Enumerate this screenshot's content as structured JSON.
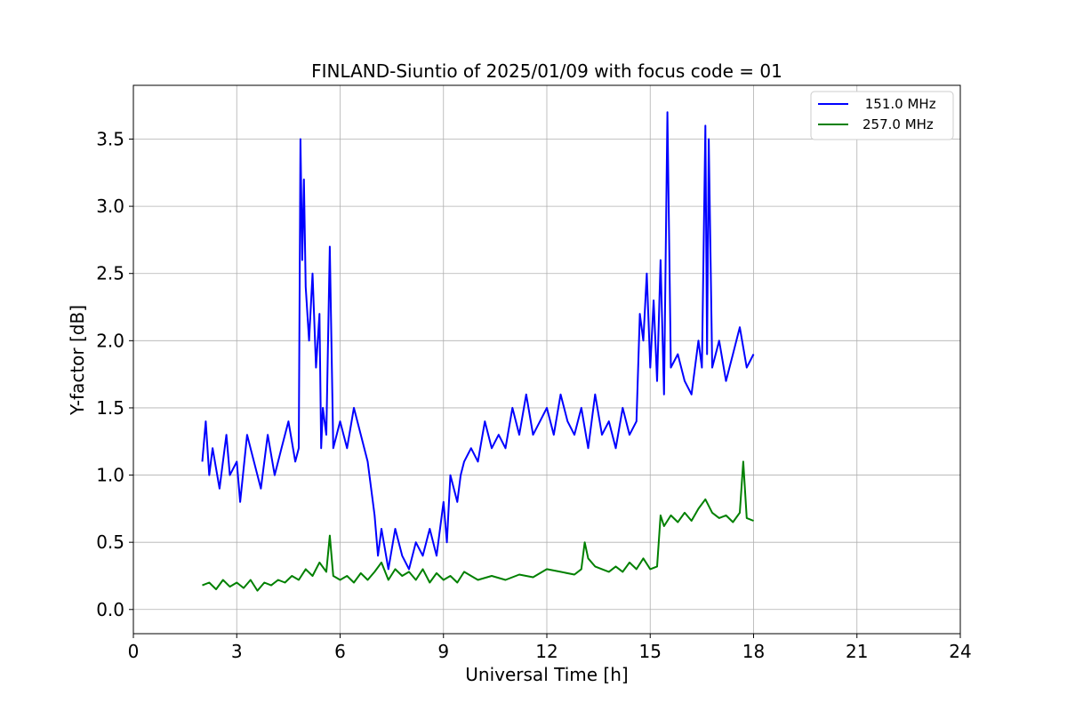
{
  "chart_data": {
    "type": "line",
    "title": "FINLAND-Siuntio of 2025/01/09 with focus code = 01",
    "xlabel": "Universal Time [h]",
    "ylabel": "Y-factor [dB]",
    "xlim": [
      0,
      24
    ],
    "ylim": [
      -0.18,
      3.9
    ],
    "xticks": [
      0,
      3,
      6,
      9,
      12,
      15,
      18,
      21,
      24
    ],
    "yticks": [
      0.0,
      0.5,
      1.0,
      1.5,
      2.0,
      2.5,
      3.0,
      3.5
    ],
    "xtick_labels": [
      "0",
      "3",
      "6",
      "9",
      "12",
      "15",
      "18",
      "21",
      "24"
    ],
    "ytick_labels": [
      "0.0",
      "0.5",
      "1.0",
      "1.5",
      "2.0",
      "2.5",
      "3.0",
      "3.5"
    ],
    "grid": true,
    "legend_position": "top-right",
    "series": [
      {
        "name": " 151.0 MHz",
        "color": "#0000ff",
        "x": [
          2.0,
          2.1,
          2.2,
          2.3,
          2.5,
          2.7,
          2.8,
          3.0,
          3.1,
          3.3,
          3.5,
          3.7,
          3.9,
          4.1,
          4.3,
          4.5,
          4.7,
          4.8,
          4.85,
          4.9,
          4.95,
          5.0,
          5.1,
          5.2,
          5.3,
          5.4,
          5.45,
          5.5,
          5.6,
          5.7,
          5.8,
          6.0,
          6.2,
          6.4,
          6.6,
          6.8,
          7.0,
          7.1,
          7.2,
          7.4,
          7.6,
          7.8,
          8.0,
          8.2,
          8.4,
          8.6,
          8.8,
          9.0,
          9.1,
          9.2,
          9.4,
          9.5,
          9.6,
          9.8,
          10.0,
          10.2,
          10.4,
          10.6,
          10.8,
          11.0,
          11.2,
          11.4,
          11.6,
          11.8,
          12.0,
          12.2,
          12.4,
          12.6,
          12.8,
          13.0,
          13.2,
          13.4,
          13.6,
          13.8,
          14.0,
          14.2,
          14.4,
          14.6,
          14.7,
          14.8,
          14.9,
          15.0,
          15.1,
          15.2,
          15.3,
          15.4,
          15.5,
          15.6,
          15.8,
          16.0,
          16.2,
          16.4,
          16.5,
          16.6,
          16.65,
          16.7,
          16.8,
          17.0,
          17.2,
          17.4,
          17.6,
          17.8,
          18.0
        ],
        "values": [
          1.1,
          1.4,
          1.0,
          1.2,
          0.9,
          1.3,
          1.0,
          1.1,
          0.8,
          1.3,
          1.1,
          0.9,
          1.3,
          1.0,
          1.2,
          1.4,
          1.1,
          1.2,
          3.5,
          2.6,
          3.2,
          2.4,
          2.0,
          2.5,
          1.8,
          2.2,
          1.2,
          1.5,
          1.3,
          2.7,
          1.2,
          1.4,
          1.2,
          1.5,
          1.3,
          1.1,
          0.7,
          0.4,
          0.6,
          0.3,
          0.6,
          0.4,
          0.3,
          0.5,
          0.4,
          0.6,
          0.4,
          0.8,
          0.5,
          1.0,
          0.8,
          1.0,
          1.1,
          1.2,
          1.1,
          1.4,
          1.2,
          1.3,
          1.2,
          1.5,
          1.3,
          1.6,
          1.3,
          1.4,
          1.5,
          1.3,
          1.6,
          1.4,
          1.3,
          1.5,
          1.2,
          1.6,
          1.3,
          1.4,
          1.2,
          1.5,
          1.3,
          1.4,
          2.2,
          2.0,
          2.5,
          1.8,
          2.3,
          1.7,
          2.6,
          1.6,
          3.7,
          1.8,
          1.9,
          1.7,
          1.6,
          2.0,
          1.8,
          3.6,
          1.9,
          3.5,
          1.8,
          2.0,
          1.7,
          1.9,
          2.1,
          1.8,
          1.9
        ]
      },
      {
        "name": "257.0 MHz",
        "color": "#008000",
        "x": [
          2.0,
          2.2,
          2.4,
          2.6,
          2.8,
          3.0,
          3.2,
          3.4,
          3.6,
          3.8,
          4.0,
          4.2,
          4.4,
          4.6,
          4.8,
          5.0,
          5.2,
          5.4,
          5.6,
          5.7,
          5.8,
          6.0,
          6.2,
          6.4,
          6.6,
          6.8,
          7.0,
          7.2,
          7.4,
          7.6,
          7.8,
          8.0,
          8.2,
          8.4,
          8.6,
          8.8,
          9.0,
          9.2,
          9.4,
          9.6,
          9.8,
          10.0,
          10.4,
          10.8,
          11.2,
          11.6,
          12.0,
          12.4,
          12.8,
          13.0,
          13.1,
          13.2,
          13.4,
          13.6,
          13.8,
          14.0,
          14.2,
          14.4,
          14.6,
          14.8,
          15.0,
          15.2,
          15.3,
          15.4,
          15.6,
          15.8,
          16.0,
          16.2,
          16.4,
          16.6,
          16.8,
          17.0,
          17.2,
          17.4,
          17.6,
          17.7,
          17.8,
          18.0
        ],
        "values": [
          0.18,
          0.2,
          0.15,
          0.22,
          0.17,
          0.2,
          0.16,
          0.22,
          0.14,
          0.2,
          0.18,
          0.22,
          0.2,
          0.25,
          0.22,
          0.3,
          0.25,
          0.35,
          0.28,
          0.55,
          0.25,
          0.22,
          0.25,
          0.2,
          0.27,
          0.22,
          0.28,
          0.35,
          0.22,
          0.3,
          0.25,
          0.28,
          0.22,
          0.3,
          0.2,
          0.27,
          0.22,
          0.25,
          0.2,
          0.28,
          0.25,
          0.22,
          0.25,
          0.22,
          0.26,
          0.24,
          0.3,
          0.28,
          0.26,
          0.3,
          0.5,
          0.38,
          0.32,
          0.3,
          0.28,
          0.32,
          0.28,
          0.35,
          0.3,
          0.38,
          0.3,
          0.32,
          0.7,
          0.62,
          0.7,
          0.65,
          0.72,
          0.66,
          0.75,
          0.82,
          0.72,
          0.68,
          0.7,
          0.65,
          0.72,
          1.1,
          0.68,
          0.66
        ]
      }
    ]
  }
}
